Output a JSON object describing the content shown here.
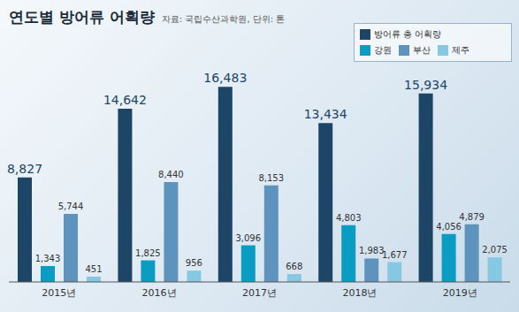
{
  "chart_data": {
    "type": "bar",
    "title": "연도별 방어류 어획량",
    "subtitle": "자료: 국립수산과학원, 단위: 톤",
    "categories": [
      "2015년",
      "2016년",
      "2017년",
      "2018년",
      "2019년"
    ],
    "series": [
      {
        "name": "방어류 총 어획량",
        "color": "#1d4566",
        "values": [
          8827,
          14642,
          16483,
          13434,
          15934
        ],
        "value_labels": [
          "8,827",
          "14,642",
          "16,483",
          "13,434",
          "15,934"
        ]
      },
      {
        "name": "강원",
        "color": "#0b9cc4",
        "values": [
          1343,
          1825,
          3096,
          4803,
          4056
        ],
        "value_labels": [
          "1,343",
          "1,825",
          "3,096",
          "4,803",
          "4,056"
        ]
      },
      {
        "name": "부산",
        "color": "#5e93bd",
        "values": [
          5744,
          8440,
          8153,
          1983,
          4879
        ],
        "value_labels": [
          "5,744",
          "8,440",
          "8,153",
          "1,983",
          "4,879"
        ]
      },
      {
        "name": "제주",
        "color": "#86c8e2",
        "values": [
          451,
          956,
          668,
          1677,
          2075
        ],
        "value_labels": [
          "451",
          "956",
          "668",
          "1,677",
          "2,075"
        ]
      }
    ],
    "ylim": [
      0,
      18000
    ],
    "grid": false,
    "legend": "top-right",
    "data_labels": true,
    "tick_labels": "x"
  }
}
